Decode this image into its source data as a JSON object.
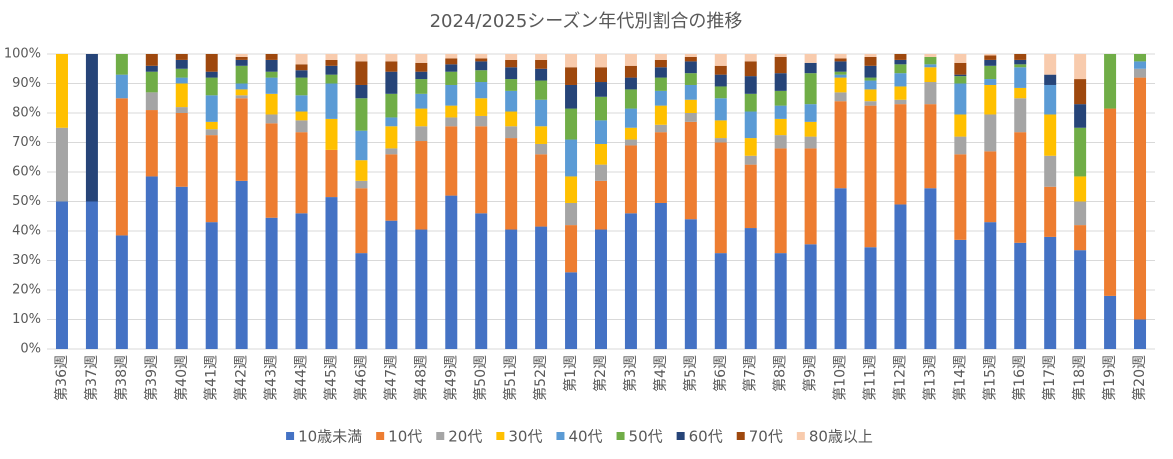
{
  "chart_data": {
    "type": "stacked_bar",
    "title": "2024/2025シーズン年代別割合の推移",
    "categories": [
      "第36週",
      "第37週",
      "第38週",
      "第39週",
      "第40週",
      "第41週",
      "第42週",
      "第43週",
      "第44週",
      "第45週",
      "第46週",
      "第47週",
      "第48週",
      "第49週",
      "第50週",
      "第51週",
      "第52週",
      "第1週",
      "第2週",
      "第3週",
      "第4週",
      "第5週",
      "第6週",
      "第7週",
      "第8週",
      "第9週",
      "第10週",
      "第11週",
      "第12週",
      "第13週",
      "第14週",
      "第15週",
      "第16週",
      "第17週",
      "第18週",
      "第19週",
      "第20週"
    ],
    "series": [
      {
        "name": "10歳未満",
        "color": "#4472c4",
        "values": [
          50,
          50,
          38.5,
          58.5,
          55,
          43,
          57,
          44.5,
          46,
          51.5,
          32.5,
          43.5,
          40.5,
          52,
          46,
          40.5,
          41.5,
          26,
          40.5,
          46,
          49.5,
          44,
          32.5,
          41,
          32.5,
          35.5,
          54.5,
          34.5,
          49,
          54.5,
          37,
          43,
          36,
          38,
          33.5,
          18,
          10
        ]
      },
      {
        "name": "10代",
        "color": "#ed7d31",
        "values": [
          0,
          0,
          46.5,
          22.5,
          25,
          29.5,
          28,
          32,
          27.5,
          16,
          22,
          22.5,
          30,
          23.5,
          29.5,
          31,
          24.5,
          16,
          16.5,
          23,
          24,
          33,
          37.5,
          21.5,
          35.5,
          32.5,
          29.5,
          48,
          34,
          28.5,
          29,
          24,
          37.5,
          17,
          8.5,
          63.5,
          82
        ]
      },
      {
        "name": "20代",
        "color": "#a5a5a5",
        "values": [
          25,
          0,
          0,
          6,
          2,
          2,
          1,
          3,
          4,
          0,
          2.5,
          2,
          5,
          3,
          3.5,
          4,
          3.5,
          7.5,
          5.5,
          2,
          2.5,
          3,
          1.5,
          3,
          4.5,
          4,
          3,
          1.5,
          1.5,
          7.5,
          6,
          12.5,
          11.5,
          10.5,
          8,
          0,
          3
        ]
      },
      {
        "name": "30代",
        "color": "#ffc000",
        "values": [
          25,
          0,
          0,
          0,
          8,
          2.5,
          2,
          7,
          3,
          10.5,
          7,
          7.5,
          6,
          4,
          6,
          5,
          6,
          9,
          7,
          4,
          6.5,
          4.5,
          6,
          6,
          5.5,
          5,
          5,
          4,
          4.5,
          5,
          7.5,
          10,
          3.5,
          14,
          8.5,
          0,
          0
        ]
      },
      {
        "name": "40代",
        "color": "#5b9bd5",
        "values": [
          0,
          0,
          8,
          0,
          2,
          9,
          2,
          5.5,
          5.5,
          12,
          10,
          3,
          5,
          7,
          5.5,
          7,
          9,
          12.5,
          8,
          6.5,
          5,
          5,
          7.5,
          9,
          4.5,
          6,
          1,
          3,
          4.5,
          1,
          10.5,
          2,
          7,
          10,
          0,
          0,
          2.5
        ]
      },
      {
        "name": "50代",
        "color": "#70ad47",
        "values": [
          0,
          0,
          7,
          7,
          3,
          6,
          6,
          2,
          6,
          3,
          11,
          8,
          5,
          4.5,
          4,
          4,
          6.5,
          10.5,
          8,
          6.5,
          4.5,
          4,
          4,
          6,
          5,
          10.5,
          1,
          1,
          3,
          2.5,
          2.5,
          4.5,
          1,
          0,
          16.5,
          18.5,
          2.5
        ]
      },
      {
        "name": "60代",
        "color": "#264478",
        "values": [
          0,
          50,
          0,
          2,
          3,
          2,
          2,
          4,
          2.5,
          3,
          4.5,
          7.5,
          2.5,
          2.5,
          3,
          4,
          4,
          8,
          5,
          4,
          3.5,
          4,
          4,
          6,
          6,
          3.5,
          3.5,
          4,
          1.5,
          0,
          0.5,
          2,
          1.5,
          3.5,
          8,
          0,
          0
        ]
      },
      {
        "name": "70代",
        "color": "#9e480e",
        "values": [
          0,
          0,
          0,
          4,
          2,
          6,
          1,
          2,
          2,
          2,
          8,
          3.5,
          3,
          2,
          1,
          2.5,
          3,
          6,
          5,
          4,
          2.5,
          1.5,
          3,
          5,
          5.5,
          0,
          1,
          3,
          2,
          0,
          4,
          1.5,
          2,
          0,
          8.5,
          0,
          0
        ]
      },
      {
        "name": "80歳以上",
        "color": "#f8cbad",
        "values": [
          0,
          0,
          0,
          0,
          0,
          0,
          1,
          0,
          3.5,
          2,
          2.5,
          2.5,
          3,
          1.5,
          1.5,
          2,
          2,
          4.5,
          4.5,
          4,
          2,
          1,
          4,
          2.5,
          1,
          3,
          1.5,
          1,
          0,
          1,
          3,
          0.5,
          0,
          7,
          8.5,
          0,
          0
        ]
      }
    ],
    "ylim": [
      0,
      100
    ],
    "yticks": [
      {
        "value": 0,
        "label": "0%"
      },
      {
        "value": 10,
        "label": "10%"
      },
      {
        "value": 20,
        "label": "20%"
      },
      {
        "value": 30,
        "label": "30%"
      },
      {
        "value": 40,
        "label": "40%"
      },
      {
        "value": 50,
        "label": "50%"
      },
      {
        "value": 60,
        "label": "60%"
      },
      {
        "value": 70,
        "label": "70%"
      },
      {
        "value": 80,
        "label": "80%"
      },
      {
        "value": 90,
        "label": "90%"
      },
      {
        "value": 100,
        "label": "100%"
      }
    ],
    "grid": true,
    "legend": "bottom"
  }
}
